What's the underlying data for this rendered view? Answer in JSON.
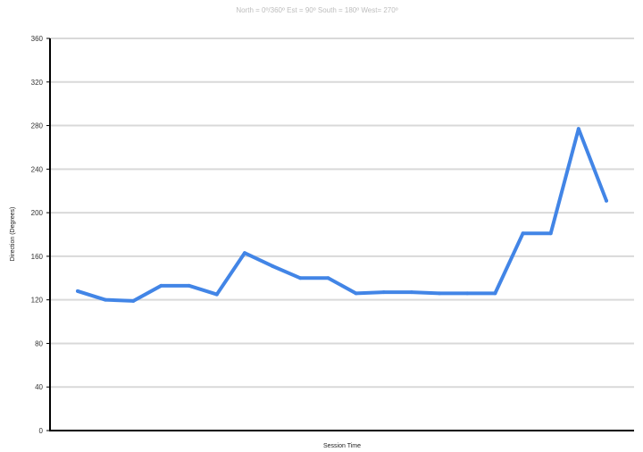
{
  "chart_data": {
    "type": "line",
    "title": "North = 0º/360º Est = 90º South = 180º West= 270º",
    "xlabel": "Session Time",
    "ylabel": "Direction (Degrees)",
    "ylim": [
      0,
      360
    ],
    "yticks": [
      "0",
      "40",
      "80",
      "120",
      "160",
      "200",
      "240",
      "280",
      "320",
      "360"
    ],
    "grid": true,
    "series": [
      {
        "color": "#4285e6",
        "values": [
          128,
          120,
          119,
          133,
          133,
          125,
          163,
          151,
          140,
          140,
          126,
          127,
          127,
          126,
          126,
          126,
          181,
          181,
          277,
          211
        ]
      }
    ]
  }
}
